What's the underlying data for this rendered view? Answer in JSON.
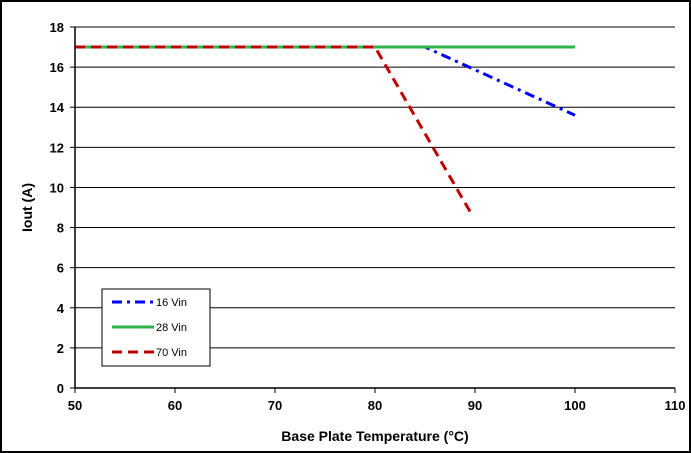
{
  "chart_data": {
    "type": "line",
    "title": "",
    "xlabel": "Base Plate Temperature (°C)",
    "ylabel": "Iout (A)",
    "xlim": [
      50,
      110
    ],
    "ylim": [
      0,
      18
    ],
    "x_ticks": [
      50,
      60,
      70,
      80,
      90,
      100,
      110
    ],
    "y_ticks": [
      0,
      2,
      4,
      6,
      8,
      10,
      12,
      14,
      16,
      18
    ],
    "grid": "horizontal",
    "legend_position": "bottom-left",
    "series": [
      {
        "name": "16 Vin",
        "color": "#0000ff",
        "dash": "dash-dot",
        "points": [
          [
            50,
            17.0
          ],
          [
            85,
            17.0
          ],
          [
            100,
            13.6
          ]
        ]
      },
      {
        "name": "28 Vin",
        "color": "#2db34a",
        "dash": "solid",
        "points": [
          [
            50,
            17.0
          ],
          [
            100,
            17.0
          ]
        ]
      },
      {
        "name": "70 Vin",
        "color": "#c00000",
        "dash": "dashed",
        "points": [
          [
            50,
            17.0
          ],
          [
            80,
            17.0
          ],
          [
            89.5,
            8.8
          ]
        ]
      }
    ]
  }
}
